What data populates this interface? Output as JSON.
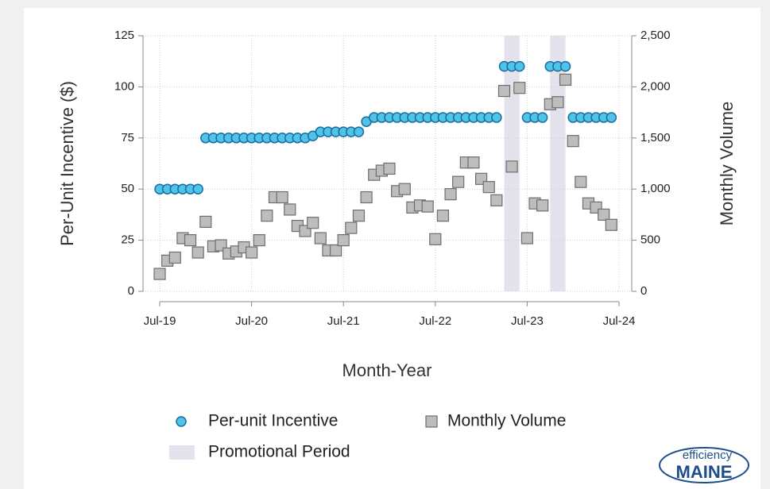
{
  "chart_data": {
    "type": "dual-axis-scatter",
    "xlabel": "Month-Year",
    "ylabel": "Per-Unit Incentive ($)",
    "y2label": "Monthly Volume",
    "categories": [
      "Jul-19",
      null,
      null,
      null,
      null,
      null,
      null,
      null,
      null,
      null,
      null,
      null,
      "Jul-20",
      null,
      null,
      null,
      null,
      null,
      null,
      null,
      null,
      null,
      null,
      null,
      "Jul-21",
      null,
      null,
      null,
      null,
      null,
      null,
      null,
      null,
      null,
      null,
      null,
      "Jul-22",
      null,
      null,
      null,
      null,
      null,
      null,
      null,
      null,
      null,
      null,
      null,
      "Jul-23",
      null,
      null,
      null,
      null,
      null,
      null,
      null,
      null,
      null,
      null,
      null,
      "Jul-24"
    ],
    "series": [
      {
        "name": "Per-unit Incentive",
        "color": "#4fc3e8",
        "marker": "circle",
        "axis": "y",
        "values": [
          50,
          50,
          50,
          50,
          50,
          50,
          75,
          75,
          75,
          75,
          75,
          75,
          75,
          75,
          75,
          75,
          75,
          75,
          75,
          75,
          76,
          78,
          78,
          78,
          78,
          78,
          78,
          83,
          85,
          85,
          85,
          85,
          85,
          85,
          85,
          85,
          85,
          85,
          85,
          85,
          85,
          85,
          85,
          85,
          85,
          110,
          110,
          110,
          85,
          85,
          85,
          110,
          110,
          110,
          85,
          85,
          85,
          85,
          85,
          85,
          null
        ]
      },
      {
        "name": "Monthly Volume",
        "color": "#bdbdbd",
        "marker": "square",
        "axis": "y2",
        "values": [
          170,
          300,
          330,
          520,
          500,
          380,
          680,
          440,
          450,
          370,
          390,
          430,
          380,
          500,
          740,
          920,
          920,
          800,
          640,
          590,
          670,
          520,
          400,
          400,
          500,
          620,
          740,
          920,
          1140,
          1180,
          1200,
          980,
          1000,
          820,
          840,
          830,
          510,
          740,
          950,
          1070,
          1260,
          1260,
          1100,
          1020,
          890,
          1960,
          1220,
          1990,
          520,
          860,
          840,
          1830,
          1850,
          2070,
          1470,
          1070,
          860,
          820,
          750,
          650,
          null
        ]
      }
    ],
    "promotion": {
      "name": "Promotional Period",
      "color": "#e4e2ec",
      "spans": [
        [
          45,
          47
        ],
        [
          51,
          53
        ]
      ]
    },
    "ylim": [
      0,
      125
    ],
    "yticks": [
      0,
      25,
      50,
      75,
      100,
      125
    ],
    "y2lim": [
      0,
      2500
    ],
    "y2ticks": [
      0,
      {
        "value": 500,
        "label": "500"
      },
      {
        "value": 1000,
        "label": "1,000"
      },
      {
        "value": 1500,
        "label": "1,500"
      },
      {
        "value": 2000,
        "label": "2,000"
      },
      {
        "value": 2500,
        "label": "2,500"
      }
    ],
    "grid": true,
    "legend": "bottom",
    "logo": {
      "top": "efficiency",
      "bottom": "MAINE"
    }
  }
}
